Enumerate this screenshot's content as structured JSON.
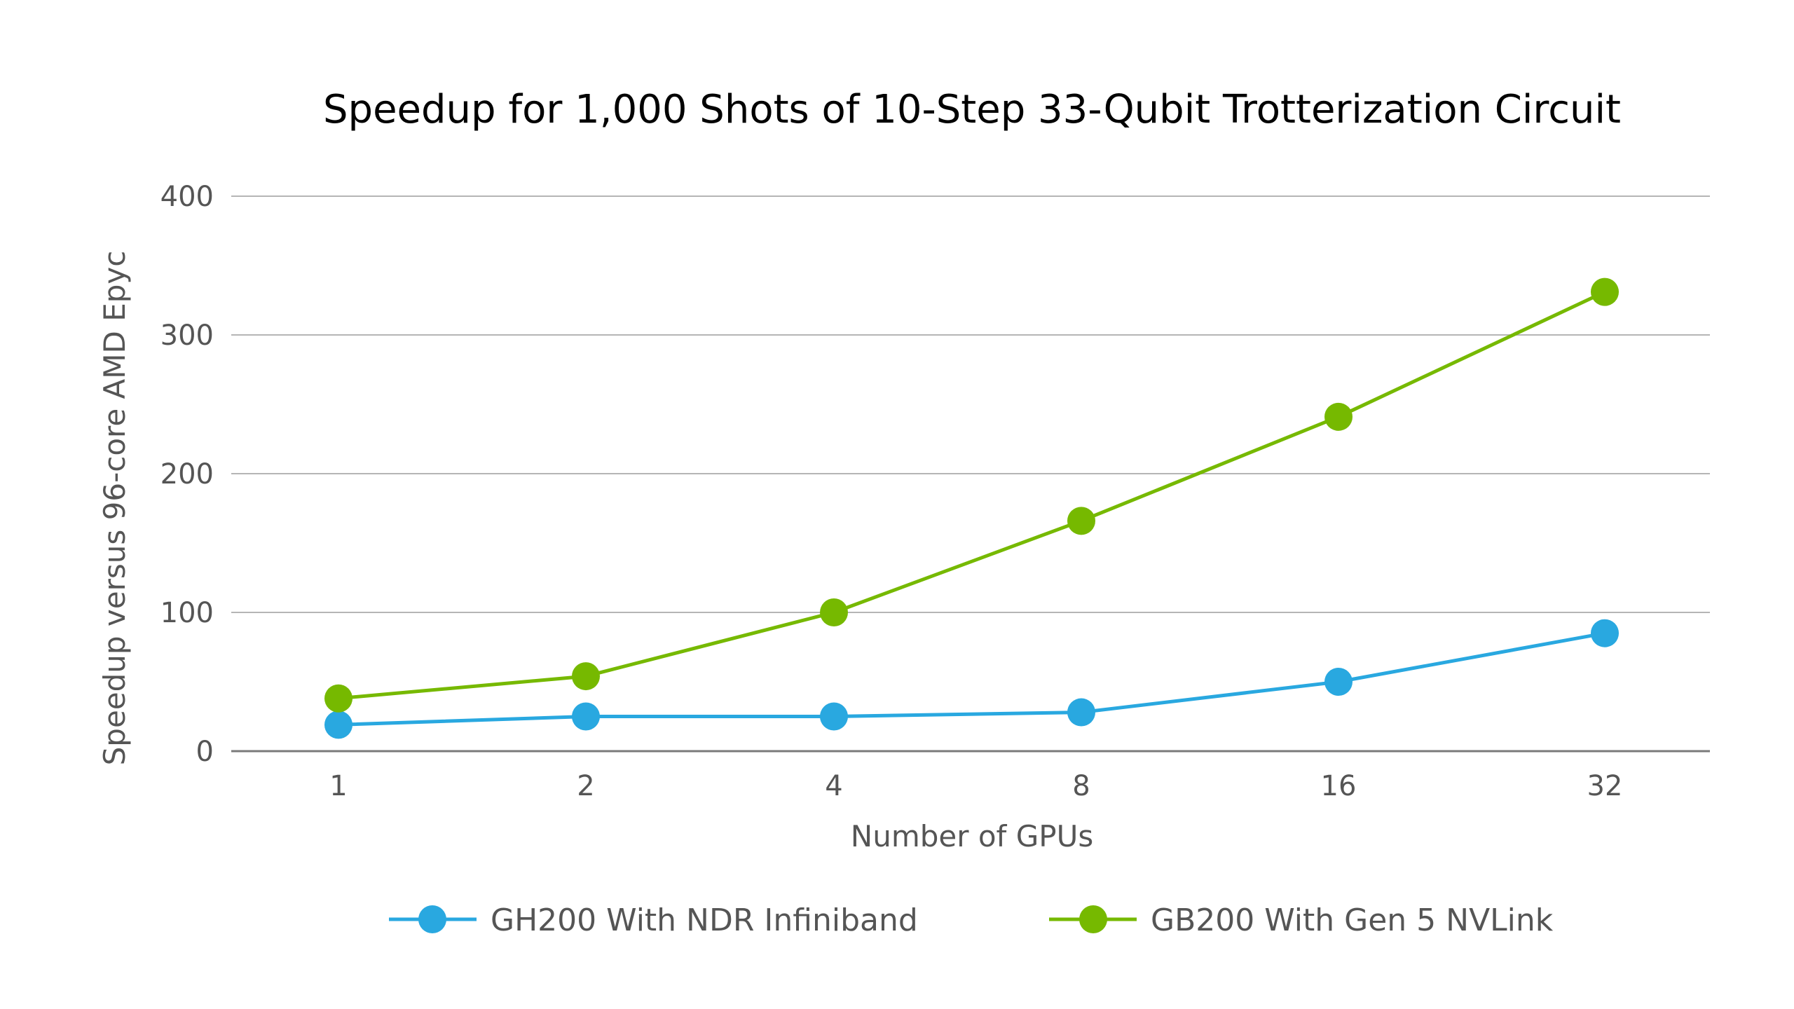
{
  "chart_data": {
    "type": "line",
    "title": "Speedup for 1,000 Shots of 10-Step 33-Qubit Trotterization Circuit",
    "xlabel": "Number of GPUs",
    "ylabel": "Speedup versus 96-core AMD Epyc",
    "categories": [
      "1",
      "2",
      "4",
      "8",
      "16",
      "32"
    ],
    "yticks": [
      "0",
      "100",
      "200",
      "300",
      "400"
    ],
    "ylim": [
      0,
      400
    ],
    "grid": true,
    "legend_position": "bottom",
    "series": [
      {
        "name": "GH200 With NDR Infiniband",
        "color": "#29a8e0",
        "values": [
          19,
          25,
          25,
          28,
          50,
          85
        ]
      },
      {
        "name": "GB200 With Gen 5 NVLink",
        "color": "#76b900",
        "values": [
          38,
          54,
          100,
          166,
          241,
          331
        ]
      }
    ]
  }
}
